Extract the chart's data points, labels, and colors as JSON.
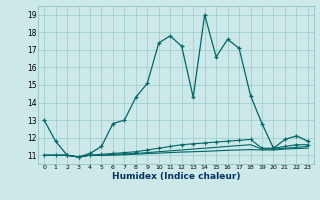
{
  "xlabel": "Humidex (Indice chaleur)",
  "background_color": "#cce8e8",
  "grid_color": "#99cccc",
  "line_color": "#006666",
  "xlim": [
    -0.5,
    23.5
  ],
  "ylim": [
    10.5,
    19.5
  ],
  "yticks": [
    11,
    12,
    13,
    14,
    15,
    16,
    17,
    18,
    19
  ],
  "xticks": [
    0,
    1,
    2,
    3,
    4,
    5,
    6,
    7,
    8,
    9,
    10,
    11,
    12,
    13,
    14,
    15,
    16,
    17,
    18,
    19,
    20,
    21,
    22,
    23
  ],
  "series1_x": [
    0,
    1,
    2,
    3,
    4,
    5,
    6,
    7,
    8,
    9,
    10,
    11,
    12,
    13,
    14,
    15,
    16,
    17,
    18,
    19,
    20,
    21,
    22,
    23
  ],
  "series1_y": [
    13.0,
    11.8,
    11.0,
    10.9,
    11.1,
    11.5,
    12.8,
    13.0,
    14.3,
    15.1,
    17.4,
    17.8,
    17.2,
    14.3,
    19.0,
    16.6,
    17.6,
    17.1,
    14.4,
    12.8,
    11.4,
    11.9,
    12.1,
    11.8
  ],
  "series2_x": [
    0,
    1,
    2,
    3,
    4,
    5,
    6,
    7,
    8,
    9,
    10,
    11,
    12,
    13,
    14,
    15,
    16,
    17,
    18,
    19,
    20,
    21,
    22,
    23
  ],
  "series2_y": [
    11.0,
    11.0,
    11.0,
    10.9,
    11.0,
    11.05,
    11.1,
    11.15,
    11.2,
    11.3,
    11.4,
    11.5,
    11.6,
    11.65,
    11.7,
    11.75,
    11.8,
    11.85,
    11.9,
    11.4,
    11.4,
    11.5,
    11.6,
    11.6
  ],
  "series3_x": [
    0,
    1,
    2,
    3,
    4,
    5,
    6,
    7,
    8,
    9,
    10,
    11,
    12,
    13,
    14,
    15,
    16,
    17,
    18,
    19,
    20,
    21,
    22,
    23
  ],
  "series3_y": [
    11.0,
    11.0,
    11.0,
    10.9,
    11.0,
    11.0,
    11.05,
    11.07,
    11.1,
    11.15,
    11.2,
    11.25,
    11.3,
    11.35,
    11.4,
    11.45,
    11.5,
    11.55,
    11.6,
    11.35,
    11.35,
    11.4,
    11.45,
    11.5
  ],
  "series4_x": [
    0,
    1,
    2,
    3,
    4,
    5,
    6,
    7,
    8,
    9,
    10,
    11,
    12,
    13,
    14,
    15,
    16,
    17,
    18,
    19,
    20,
    21,
    22,
    23
  ],
  "series4_y": [
    11.0,
    11.0,
    11.0,
    10.9,
    11.0,
    11.0,
    11.0,
    11.03,
    11.06,
    11.09,
    11.12,
    11.15,
    11.18,
    11.2,
    11.22,
    11.25,
    11.28,
    11.3,
    11.32,
    11.3,
    11.3,
    11.35,
    11.38,
    11.4
  ]
}
